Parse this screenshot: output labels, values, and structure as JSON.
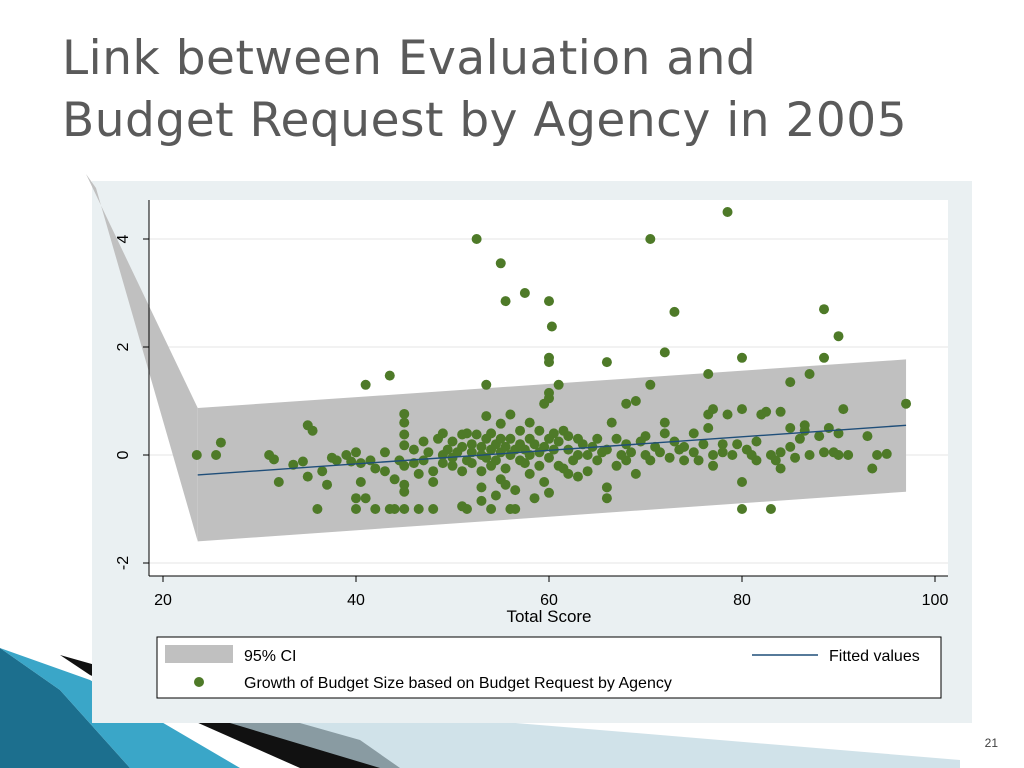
{
  "slide": {
    "title_line1": "Link between Evaluation and",
    "title_line2": "Budget Request by Agency in 2005",
    "page_number": "21"
  },
  "colors": {
    "title": "#5a5a5a",
    "panel_background": "#eaf0f2",
    "plot_background": "#ffffff",
    "ci_band": "#c0c0c0",
    "fitted_line": "#1f4e79",
    "points": "#4e7a28",
    "decoration_teal": "#2a8aaa"
  },
  "chart_data": {
    "type": "scatter",
    "xlabel": "Total Score",
    "ylabel": "",
    "xlim": [
      18,
      101
    ],
    "ylim": [
      -2.2,
      4.7
    ],
    "x_ticks": [
      20,
      40,
      60,
      80,
      100
    ],
    "y_ticks": [
      -2,
      0,
      2,
      4
    ],
    "grid": "horizontal",
    "legend_position": "bottom",
    "fitted_line": {
      "name": "Fitted values",
      "x": [
        23.6,
        97
      ],
      "y": [
        -0.37,
        0.55
      ]
    },
    "confidence_band": {
      "name": "95% CI",
      "x": [
        23.6,
        97
      ],
      "upper": [
        0.87,
        1.77
      ],
      "lower": [
        -1.6,
        -0.68
      ]
    },
    "series": [
      {
        "name": "Growth of Budget Size based on Budget Request by Agency",
        "points": [
          [
            23.5,
            0
          ],
          [
            25.5,
            0
          ],
          [
            26,
            0.23
          ],
          [
            31,
            0
          ],
          [
            31.5,
            -0.08
          ],
          [
            32,
            -0.5
          ],
          [
            33.5,
            -0.18
          ],
          [
            34.5,
            -0.12
          ],
          [
            35,
            0.55
          ],
          [
            35.5,
            0.45
          ],
          [
            35,
            -0.4
          ],
          [
            36,
            -1
          ],
          [
            36.5,
            -0.3
          ],
          [
            37,
            -0.55
          ],
          [
            37.5,
            -0.05
          ],
          [
            38,
            -0.1
          ],
          [
            39,
            0
          ],
          [
            39.5,
            -0.12
          ],
          [
            40,
            0.05
          ],
          [
            40.5,
            -0.15
          ],
          [
            40,
            -0.8
          ],
          [
            40.5,
            -0.5
          ],
          [
            40,
            -1
          ],
          [
            41,
            -0.8
          ],
          [
            41,
            1.3
          ],
          [
            41.5,
            -0.1
          ],
          [
            42,
            -0.25
          ],
          [
            42,
            -1
          ],
          [
            43,
            0.05
          ],
          [
            43,
            -0.3
          ],
          [
            43.5,
            -1
          ],
          [
            43.5,
            1.47
          ],
          [
            44,
            -0.45
          ],
          [
            44,
            -1
          ],
          [
            44.5,
            -0.1
          ],
          [
            45,
            0.76
          ],
          [
            45,
            0.6
          ],
          [
            45,
            0.38
          ],
          [
            45,
            0.18
          ],
          [
            45,
            -0.2
          ],
          [
            45,
            -0.55
          ],
          [
            45,
            -0.68
          ],
          [
            45,
            -1
          ],
          [
            46,
            0.1
          ],
          [
            46,
            -0.15
          ],
          [
            46.5,
            -0.35
          ],
          [
            46.5,
            -1
          ],
          [
            47,
            0.25
          ],
          [
            47,
            -0.1
          ],
          [
            47.5,
            0.05
          ],
          [
            48,
            -0.3
          ],
          [
            48,
            -0.5
          ],
          [
            48,
            -1
          ],
          [
            48.5,
            0.3
          ],
          [
            49,
            0
          ],
          [
            49,
            -0.15
          ],
          [
            49,
            0.4
          ],
          [
            49.5,
            0.1
          ],
          [
            50,
            -0.2
          ],
          [
            50,
            -0.05
          ],
          [
            50,
            0.25
          ],
          [
            50.5,
            0.05
          ],
          [
            51,
            -0.3
          ],
          [
            51,
            0.38
          ],
          [
            51,
            0.15
          ],
          [
            51,
            -0.95
          ],
          [
            51.5,
            0.4
          ],
          [
            51.5,
            -0.1
          ],
          [
            51.5,
            -1
          ],
          [
            52,
            0.2
          ],
          [
            52,
            0.05
          ],
          [
            52,
            -0.15
          ],
          [
            52.5,
            0.38
          ],
          [
            52.5,
            4
          ],
          [
            53,
            0
          ],
          [
            53,
            0.15
          ],
          [
            53,
            -0.3
          ],
          [
            53,
            -0.6
          ],
          [
            53,
            -0.85
          ],
          [
            53.5,
            0.3
          ],
          [
            53.5,
            -0.05
          ],
          [
            53.5,
            0.72
          ],
          [
            53.5,
            1.3
          ],
          [
            54,
            0.1
          ],
          [
            54,
            -0.2
          ],
          [
            54,
            0.4
          ],
          [
            54,
            -1
          ],
          [
            54.5,
            -0.1
          ],
          [
            54.5,
            0.2
          ],
          [
            54.5,
            -0.75
          ],
          [
            55,
            0.05
          ],
          [
            55,
            0.3
          ],
          [
            55,
            -0.45
          ],
          [
            55,
            0.58
          ],
          [
            55,
            3.55
          ],
          [
            55.5,
            0.15
          ],
          [
            55.5,
            -0.25
          ],
          [
            55.5,
            -0.55
          ],
          [
            55.5,
            2.85
          ],
          [
            56,
            0
          ],
          [
            56,
            0.3
          ],
          [
            56,
            -1
          ],
          [
            56,
            0.75
          ],
          [
            56.5,
            0.1
          ],
          [
            56.5,
            -0.65
          ],
          [
            56.5,
            -1
          ],
          [
            57,
            0.2
          ],
          [
            57,
            -0.1
          ],
          [
            57,
            0.45
          ],
          [
            57.5,
            0.1
          ],
          [
            57.5,
            -0.15
          ],
          [
            57.5,
            3
          ],
          [
            58,
            0.3
          ],
          [
            58,
            -0.35
          ],
          [
            58,
            0.6
          ],
          [
            58,
            0
          ],
          [
            58.5,
            -0.8
          ],
          [
            58.5,
            0.2
          ],
          [
            59,
            0.05
          ],
          [
            59,
            -0.2
          ],
          [
            59,
            0.45
          ],
          [
            59.5,
            0.15
          ],
          [
            59.5,
            0.95
          ],
          [
            59.5,
            -0.5
          ],
          [
            60,
            0.3
          ],
          [
            60,
            -0.05
          ],
          [
            60,
            1.05
          ],
          [
            60,
            1.15
          ],
          [
            60,
            -0.7
          ],
          [
            60,
            1.72
          ],
          [
            60,
            1.8
          ],
          [
            60,
            2.85
          ],
          [
            60.3,
            2.38
          ],
          [
            60.5,
            0.4
          ],
          [
            60.5,
            0.1
          ],
          [
            61,
            0.25
          ],
          [
            61,
            -0.2
          ],
          [
            61,
            1.3
          ],
          [
            61.5,
            0.45
          ],
          [
            61.5,
            -0.25
          ],
          [
            62,
            0.1
          ],
          [
            62,
            -0.35
          ],
          [
            62,
            0.35
          ],
          [
            62.5,
            -0.1
          ],
          [
            63,
            0.3
          ],
          [
            63,
            0
          ],
          [
            63,
            -0.4
          ],
          [
            63.5,
            0.2
          ],
          [
            64,
            0
          ],
          [
            64,
            -0.3
          ],
          [
            64.5,
            0.15
          ],
          [
            65,
            0.3
          ],
          [
            65,
            -0.1
          ],
          [
            65.5,
            0.05
          ],
          [
            66,
            -0.6
          ],
          [
            66,
            -0.8
          ],
          [
            66,
            0.1
          ],
          [
            66,
            1.72
          ],
          [
            66.5,
            0.6
          ],
          [
            67,
            0.3
          ],
          [
            67,
            -0.2
          ],
          [
            67.5,
            0
          ],
          [
            68,
            0.2
          ],
          [
            68,
            -0.1
          ],
          [
            68,
            0.95
          ],
          [
            68.5,
            0.05
          ],
          [
            69,
            1
          ],
          [
            69,
            -0.35
          ],
          [
            69.5,
            0.25
          ],
          [
            70,
            0
          ],
          [
            70,
            0.35
          ],
          [
            70.5,
            -0.1
          ],
          [
            70.5,
            1.3
          ],
          [
            70.5,
            4
          ],
          [
            71,
            0.15
          ],
          [
            71.5,
            0.05
          ],
          [
            72,
            0.4
          ],
          [
            72,
            0.6
          ],
          [
            72,
            1.9
          ],
          [
            72.5,
            -0.05
          ],
          [
            73,
            2.65
          ],
          [
            73,
            0.25
          ],
          [
            73.5,
            0.1
          ],
          [
            74,
            -0.1
          ],
          [
            74,
            0.15
          ],
          [
            75,
            0.05
          ],
          [
            75,
            0.4
          ],
          [
            75.5,
            -0.1
          ],
          [
            76,
            0.2
          ],
          [
            76.5,
            0.5
          ],
          [
            76.5,
            0.75
          ],
          [
            76.5,
            1.5
          ],
          [
            77,
            0.85
          ],
          [
            77,
            -0.2
          ],
          [
            77,
            0
          ],
          [
            78,
            0.05
          ],
          [
            78,
            0.2
          ],
          [
            78.5,
            4.5
          ],
          [
            78.5,
            0.75
          ],
          [
            79,
            0
          ],
          [
            79.5,
            0.2
          ],
          [
            80,
            0.85
          ],
          [
            80,
            1.8
          ],
          [
            80,
            -0.5
          ],
          [
            80,
            -1
          ],
          [
            80.5,
            0.1
          ],
          [
            81,
            0
          ],
          [
            81.5,
            -0.1
          ],
          [
            81.5,
            0.25
          ],
          [
            82,
            0.75
          ],
          [
            82.5,
            0.8
          ],
          [
            83,
            -1
          ],
          [
            83,
            0
          ],
          [
            83.5,
            -0.1
          ],
          [
            84,
            -0.25
          ],
          [
            84,
            0.05
          ],
          [
            84,
            0.8
          ],
          [
            85,
            0.15
          ],
          [
            85,
            0.5
          ],
          [
            85,
            1.35
          ],
          [
            85.5,
            -0.05
          ],
          [
            86,
            0.3
          ],
          [
            86.5,
            0.55
          ],
          [
            86.5,
            0.45
          ],
          [
            87,
            0
          ],
          [
            87,
            1.5
          ],
          [
            88,
            0.35
          ],
          [
            88.5,
            0.05
          ],
          [
            88.5,
            1.8
          ],
          [
            88.5,
            2.7
          ],
          [
            89,
            0.5
          ],
          [
            89.5,
            0.05
          ],
          [
            90,
            0.4
          ],
          [
            90,
            0
          ],
          [
            90,
            2.2
          ],
          [
            90.5,
            0.85
          ],
          [
            91,
            0
          ],
          [
            93,
            0.35
          ],
          [
            93.5,
            -0.25
          ],
          [
            94,
            0
          ],
          [
            95,
            0.02
          ],
          [
            97,
            0.95
          ]
        ]
      }
    ]
  }
}
